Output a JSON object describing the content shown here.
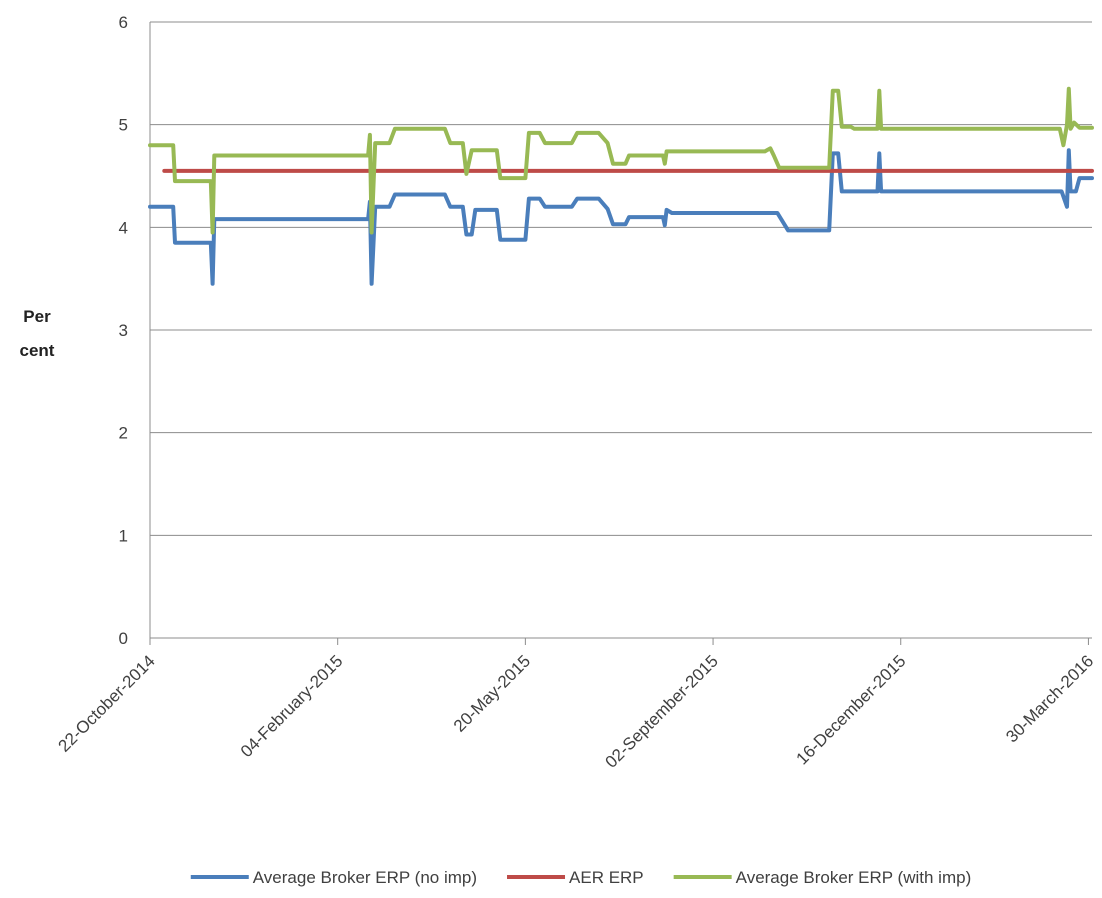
{
  "chart_data": {
    "type": "line",
    "title": "",
    "xlabel": "",
    "ylabel": [
      "Per",
      "cent"
    ],
    "ylim": [
      0,
      6
    ],
    "yticks": [
      "0",
      "1",
      "2",
      "3",
      "4",
      "5",
      "6"
    ],
    "xlim": [
      "2014-10-22",
      "2016-04-01"
    ],
    "xticks": [
      {
        "date": "2014-10-22",
        "label": "22-October-2014"
      },
      {
        "date": "2015-02-04",
        "label": "04-February-2015"
      },
      {
        "date": "2015-05-20",
        "label": "20-May-2015"
      },
      {
        "date": "2015-09-02",
        "label": "02-September-2015"
      },
      {
        "date": "2015-12-16",
        "label": "16-December-2015"
      },
      {
        "date": "2016-03-30",
        "label": "30-March-2016"
      }
    ],
    "grid": "horizontal",
    "legend": "bottom",
    "series": [
      {
        "name": "Average Broker ERP (no imp)",
        "color": "#4a7ebb",
        "points": [
          [
            "2014-10-22",
            4.2
          ],
          [
            "2014-11-04",
            4.2
          ],
          [
            "2014-11-05",
            3.85
          ],
          [
            "2014-11-25",
            3.85
          ],
          [
            "2014-11-26",
            3.45
          ],
          [
            "2014-11-27",
            4.08
          ],
          [
            "2015-02-21",
            4.08
          ],
          [
            "2015-02-22",
            4.25
          ],
          [
            "2015-02-23",
            3.45
          ],
          [
            "2015-02-25",
            4.2
          ],
          [
            "2015-03-05",
            4.2
          ],
          [
            "2015-03-08",
            4.32
          ],
          [
            "2015-04-05",
            4.32
          ],
          [
            "2015-04-08",
            4.2
          ],
          [
            "2015-04-15",
            4.2
          ],
          [
            "2015-04-17",
            3.93
          ],
          [
            "2015-04-20",
            3.93
          ],
          [
            "2015-04-22",
            4.17
          ],
          [
            "2015-05-04",
            4.17
          ],
          [
            "2015-05-06",
            3.88
          ],
          [
            "2015-05-20",
            3.88
          ],
          [
            "2015-05-22",
            4.28
          ],
          [
            "2015-05-28",
            4.28
          ],
          [
            "2015-05-31",
            4.2
          ],
          [
            "2015-06-15",
            4.2
          ],
          [
            "2015-06-18",
            4.28
          ],
          [
            "2015-06-30",
            4.28
          ],
          [
            "2015-07-05",
            4.18
          ],
          [
            "2015-07-08",
            4.03
          ],
          [
            "2015-07-15",
            4.03
          ],
          [
            "2015-07-17",
            4.1
          ],
          [
            "2015-08-05",
            4.1
          ],
          [
            "2015-08-06",
            4.02
          ],
          [
            "2015-08-07",
            4.17
          ],
          [
            "2015-08-10",
            4.14
          ],
          [
            "2015-10-08",
            4.14
          ],
          [
            "2015-10-14",
            3.97
          ],
          [
            "2015-11-06",
            3.97
          ],
          [
            "2015-11-08",
            4.72
          ],
          [
            "2015-11-11",
            4.72
          ],
          [
            "2015-11-13",
            4.35
          ],
          [
            "2015-12-03",
            4.35
          ],
          [
            "2015-12-04",
            4.72
          ],
          [
            "2015-12-05",
            4.35
          ],
          [
            "2016-03-15",
            4.35
          ],
          [
            "2016-03-18",
            4.2
          ],
          [
            "2016-03-19",
            4.75
          ],
          [
            "2016-03-20",
            4.35
          ],
          [
            "2016-03-23",
            4.35
          ],
          [
            "2016-03-25",
            4.48
          ],
          [
            "2016-04-01",
            4.48
          ]
        ]
      },
      {
        "name": "AER ERP",
        "color": "#be4b48",
        "points": [
          [
            "2014-10-30",
            4.55
          ],
          [
            "2016-04-01",
            4.55
          ]
        ]
      },
      {
        "name": "Average Broker ERP (with imp)",
        "color": "#98b954",
        "points": [
          [
            "2014-10-22",
            4.8
          ],
          [
            "2014-11-04",
            4.8
          ],
          [
            "2014-11-05",
            4.45
          ],
          [
            "2014-11-25",
            4.45
          ],
          [
            "2014-11-26",
            3.95
          ],
          [
            "2014-11-27",
            4.7
          ],
          [
            "2015-02-21",
            4.7
          ],
          [
            "2015-02-22",
            4.9
          ],
          [
            "2015-02-23",
            3.95
          ],
          [
            "2015-02-25",
            4.82
          ],
          [
            "2015-03-05",
            4.82
          ],
          [
            "2015-03-08",
            4.96
          ],
          [
            "2015-04-05",
            4.96
          ],
          [
            "2015-04-08",
            4.82
          ],
          [
            "2015-04-15",
            4.82
          ],
          [
            "2015-04-17",
            4.52
          ],
          [
            "2015-04-20",
            4.75
          ],
          [
            "2015-05-04",
            4.75
          ],
          [
            "2015-05-06",
            4.48
          ],
          [
            "2015-05-20",
            4.48
          ],
          [
            "2015-05-22",
            4.92
          ],
          [
            "2015-05-28",
            4.92
          ],
          [
            "2015-05-31",
            4.82
          ],
          [
            "2015-06-15",
            4.82
          ],
          [
            "2015-06-18",
            4.92
          ],
          [
            "2015-06-30",
            4.92
          ],
          [
            "2015-07-05",
            4.82
          ],
          [
            "2015-07-08",
            4.62
          ],
          [
            "2015-07-15",
            4.62
          ],
          [
            "2015-07-17",
            4.7
          ],
          [
            "2015-08-05",
            4.7
          ],
          [
            "2015-08-06",
            4.62
          ],
          [
            "2015-08-07",
            4.74
          ],
          [
            "2015-10-01",
            4.74
          ],
          [
            "2015-10-04",
            4.77
          ],
          [
            "2015-10-06",
            4.7
          ],
          [
            "2015-10-09",
            4.58
          ],
          [
            "2015-11-06",
            4.58
          ],
          [
            "2015-11-08",
            5.33
          ],
          [
            "2015-11-11",
            5.33
          ],
          [
            "2015-11-13",
            4.98
          ],
          [
            "2015-11-18",
            4.98
          ],
          [
            "2015-11-20",
            4.96
          ],
          [
            "2015-12-03",
            4.96
          ],
          [
            "2015-12-04",
            5.33
          ],
          [
            "2015-12-05",
            4.96
          ],
          [
            "2016-03-14",
            4.96
          ],
          [
            "2016-03-16",
            4.8
          ],
          [
            "2016-03-18",
            5.0
          ],
          [
            "2016-03-19",
            5.35
          ],
          [
            "2016-03-20",
            4.96
          ],
          [
            "2016-03-22",
            5.02
          ],
          [
            "2016-03-25",
            4.97
          ],
          [
            "2016-04-01",
            4.97
          ]
        ]
      }
    ]
  }
}
